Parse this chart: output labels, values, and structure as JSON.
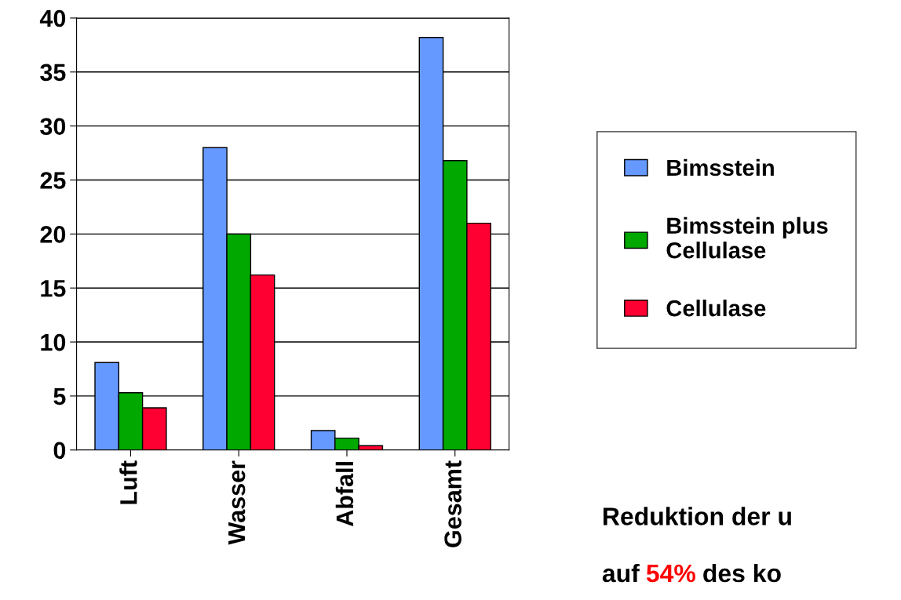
{
  "chart_data": {
    "type": "bar",
    "categories": [
      "Luft",
      "Wasser",
      "Abfall",
      "Gesamt"
    ],
    "series": [
      {
        "name": "Bimsstein",
        "color": "#6699ff",
        "values": [
          8.1,
          28.0,
          1.8,
          38.2
        ]
      },
      {
        "name": "Bimsstein plus Cellulase",
        "color": "#00a800",
        "values": [
          5.3,
          20.0,
          1.1,
          26.8
        ]
      },
      {
        "name": "Cellulase",
        "color": "#ff0033",
        "values": [
          3.9,
          16.2,
          0.4,
          21.0
        ]
      }
    ],
    "ylim": [
      0,
      40
    ],
    "yticks": [
      0,
      5,
      10,
      15,
      20,
      25,
      30,
      35,
      40
    ],
    "grid": "y",
    "legend": "right",
    "annotations": [
      "Reduktion der u",
      "auf",
      "54%",
      "des ko"
    ]
  }
}
